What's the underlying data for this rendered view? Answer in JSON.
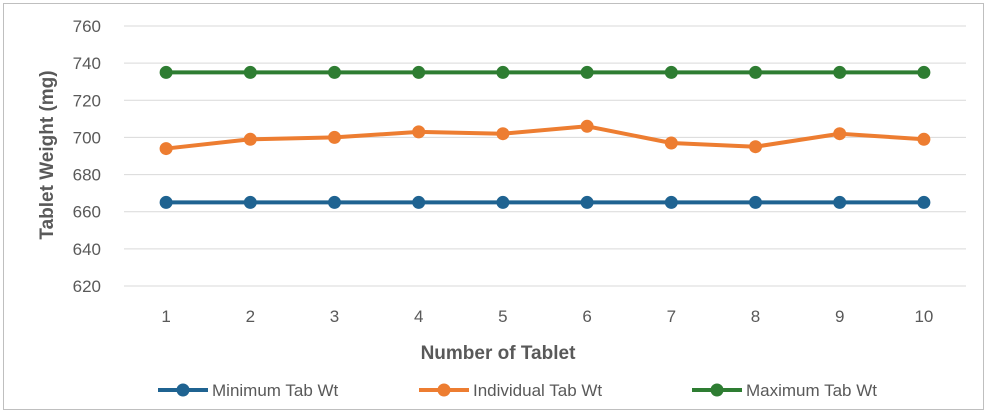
{
  "chart_data": {
    "type": "line",
    "title": "",
    "xlabel": "Number of Tablet",
    "ylabel": "Tablet Weight (mg)",
    "categories": [
      "1",
      "2",
      "3",
      "4",
      "5",
      "6",
      "7",
      "8",
      "9",
      "10"
    ],
    "ylim": [
      620,
      760
    ],
    "yticks": [
      620,
      640,
      660,
      680,
      700,
      720,
      740,
      760
    ],
    "grid": true,
    "legend_position": "bottom",
    "series": [
      {
        "name": "Minimum Tab Wt",
        "color": "#1f6391",
        "values": [
          665,
          665,
          665,
          665,
          665,
          665,
          665,
          665,
          665,
          665
        ]
      },
      {
        "name": "Individual Tab Wt",
        "color": "#ed7d31",
        "values": [
          694,
          699,
          700,
          703,
          702,
          706,
          697,
          695,
          702,
          699
        ]
      },
      {
        "name": "Maximum Tab Wt",
        "color": "#2e7d32",
        "values": [
          735,
          735,
          735,
          735,
          735,
          735,
          735,
          735,
          735,
          735
        ]
      }
    ]
  }
}
